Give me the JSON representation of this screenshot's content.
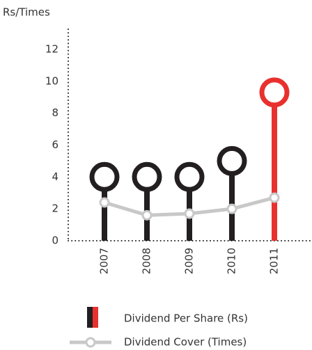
{
  "chart_data": {
    "type": "lollipop-line",
    "y_label": "Rs/Times",
    "categories": [
      "2007",
      "2008",
      "2009",
      "2010",
      "2011"
    ],
    "series": [
      {
        "name": "Dividend Per Share (Rs)",
        "colors": [
          "#231f20",
          "#231f20",
          "#231f20",
          "#231f20",
          "#e8312f"
        ],
        "values": [
          4.0,
          4.0,
          4.0,
          5.0,
          9.3
        ]
      },
      {
        "name": "Dividend Cover (Times)",
        "color": "#c8c8c8",
        "values": [
          2.4,
          1.6,
          1.7,
          2.0,
          2.7
        ]
      }
    ],
    "ylim": [
      0,
      13
    ],
    "yticks": [
      0,
      2,
      4,
      6,
      8,
      10,
      12
    ]
  }
}
